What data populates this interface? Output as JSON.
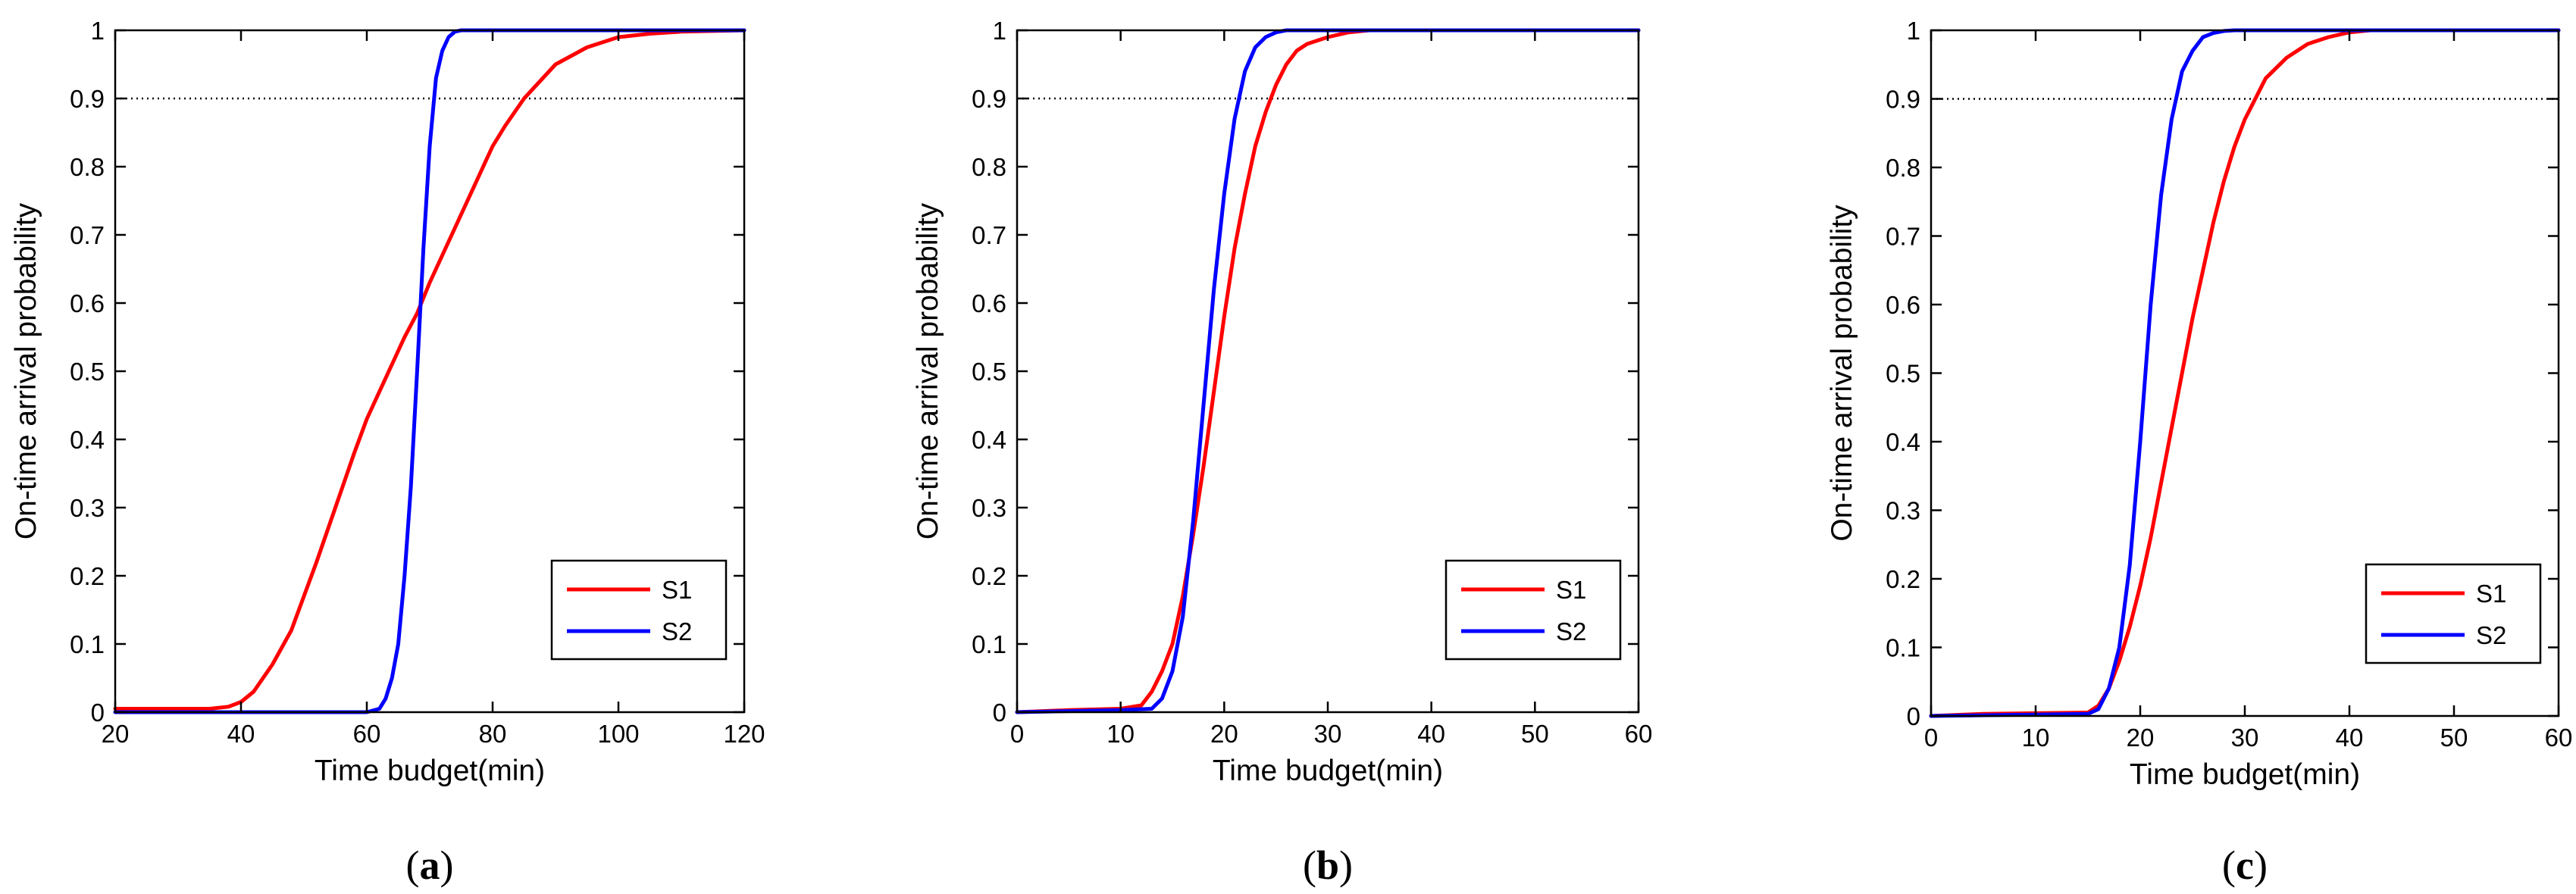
{
  "figure": {
    "reference_line": 0.9,
    "colors": {
      "S1": "#ff0000",
      "S2": "#0000ff",
      "axis": "#000000",
      "reference": "#000000"
    }
  },
  "chart_data": [
    {
      "type": "line",
      "panel_label": "(a)",
      "panel_letter": "a",
      "xlabel": "Time budget(min)",
      "ylabel": "On-time arrival probability",
      "xlim": [
        20,
        120
      ],
      "ylim": [
        0,
        1
      ],
      "xticks": [
        20,
        40,
        60,
        80,
        100,
        120
      ],
      "yticks": [
        0,
        0.1,
        0.2,
        0.3,
        0.4,
        0.5,
        0.6,
        0.7,
        0.8,
        0.9,
        1
      ],
      "reference_line": 0.9,
      "legend": [
        "S1",
        "S2"
      ],
      "legend_position": "lower-right",
      "series": [
        {
          "name": "S1",
          "color": "#ff0000",
          "x": [
            20,
            35,
            38,
            40,
            42,
            45,
            48,
            50,
            52,
            55,
            58,
            60,
            62,
            64,
            66,
            68,
            70,
            72,
            75,
            78,
            80,
            82,
            85,
            88,
            90,
            95,
            100,
            105,
            110,
            115,
            120
          ],
          "y": [
            0.005,
            0.005,
            0.008,
            0.015,
            0.03,
            0.07,
            0.12,
            0.17,
            0.22,
            0.3,
            0.38,
            0.43,
            0.47,
            0.51,
            0.55,
            0.585,
            0.63,
            0.67,
            0.73,
            0.79,
            0.83,
            0.86,
            0.9,
            0.93,
            0.95,
            0.975,
            0.99,
            0.995,
            0.998,
            0.999,
            1.0
          ]
        },
        {
          "name": "S2",
          "color": "#0000ff",
          "x": [
            20,
            60,
            62,
            63,
            64,
            65,
            66,
            67,
            68,
            69,
            70,
            71,
            72,
            73,
            74,
            75,
            120
          ],
          "y": [
            0.0,
            0.0,
            0.005,
            0.02,
            0.05,
            0.1,
            0.2,
            0.33,
            0.5,
            0.68,
            0.83,
            0.93,
            0.97,
            0.99,
            0.998,
            1.0,
            1.0
          ]
        }
      ]
    },
    {
      "type": "line",
      "panel_label": "(b)",
      "panel_letter": "b",
      "xlabel": "Time budget(min)",
      "ylabel": "On-time arrival probability",
      "xlim": [
        0,
        60
      ],
      "ylim": [
        0,
        1
      ],
      "xticks": [
        0,
        10,
        20,
        30,
        40,
        50,
        60
      ],
      "yticks": [
        0,
        0.1,
        0.2,
        0.3,
        0.4,
        0.5,
        0.6,
        0.7,
        0.8,
        0.9,
        1
      ],
      "reference_line": 0.9,
      "legend": [
        "S1",
        "S2"
      ],
      "legend_position": "lower-right",
      "series": [
        {
          "name": "S1",
          "color": "#ff0000",
          "x": [
            0,
            5,
            10,
            12,
            13,
            14,
            15,
            16,
            17,
            18,
            19,
            20,
            21,
            22,
            23,
            24,
            25,
            26,
            27,
            28,
            30,
            32,
            34,
            60
          ],
          "y": [
            0.0,
            0.003,
            0.005,
            0.01,
            0.03,
            0.06,
            0.1,
            0.17,
            0.26,
            0.36,
            0.47,
            0.58,
            0.68,
            0.76,
            0.83,
            0.88,
            0.92,
            0.95,
            0.97,
            0.98,
            0.99,
            0.997,
            1.0,
            1.0
          ]
        },
        {
          "name": "S2",
          "color": "#0000ff",
          "x": [
            0,
            10,
            13,
            14,
            15,
            16,
            17,
            18,
            19,
            20,
            21,
            22,
            23,
            24,
            25,
            26,
            27,
            60
          ],
          "y": [
            0.0,
            0.003,
            0.005,
            0.02,
            0.06,
            0.14,
            0.28,
            0.45,
            0.62,
            0.76,
            0.87,
            0.94,
            0.975,
            0.99,
            0.997,
            1.0,
            1.0,
            1.0
          ]
        }
      ]
    },
    {
      "type": "line",
      "panel_label": "(c)",
      "panel_letter": "c",
      "xlabel": "Time budget(min)",
      "ylabel": "On-time arrival probability",
      "xlim": [
        0,
        60
      ],
      "ylim": [
        0,
        1
      ],
      "xticks": [
        0,
        10,
        20,
        30,
        40,
        50,
        60
      ],
      "yticks": [
        0,
        0.1,
        0.2,
        0.3,
        0.4,
        0.5,
        0.6,
        0.7,
        0.8,
        0.9,
        1
      ],
      "reference_line": 0.9,
      "legend": [
        "S1",
        "S2"
      ],
      "legend_position": "lower-right",
      "series": [
        {
          "name": "S1",
          "color": "#ff0000",
          "x": [
            0,
            5,
            15,
            16,
            17,
            18,
            19,
            20,
            21,
            22,
            23,
            24,
            25,
            26,
            27,
            28,
            29,
            30,
            31,
            32,
            34,
            36,
            38,
            40,
            42,
            60
          ],
          "y": [
            0.0,
            0.003,
            0.005,
            0.015,
            0.04,
            0.08,
            0.13,
            0.19,
            0.26,
            0.34,
            0.42,
            0.5,
            0.58,
            0.65,
            0.72,
            0.78,
            0.83,
            0.87,
            0.9,
            0.93,
            0.96,
            0.98,
            0.99,
            0.997,
            1.0,
            1.0
          ]
        },
        {
          "name": "S2",
          "color": "#0000ff",
          "x": [
            0,
            15,
            16,
            17,
            18,
            19,
            20,
            21,
            22,
            23,
            24,
            25,
            26,
            27,
            28,
            29,
            60
          ],
          "y": [
            0.0,
            0.003,
            0.01,
            0.04,
            0.1,
            0.22,
            0.4,
            0.6,
            0.76,
            0.87,
            0.94,
            0.97,
            0.99,
            0.996,
            0.999,
            1.0,
            1.0
          ]
        }
      ]
    }
  ]
}
